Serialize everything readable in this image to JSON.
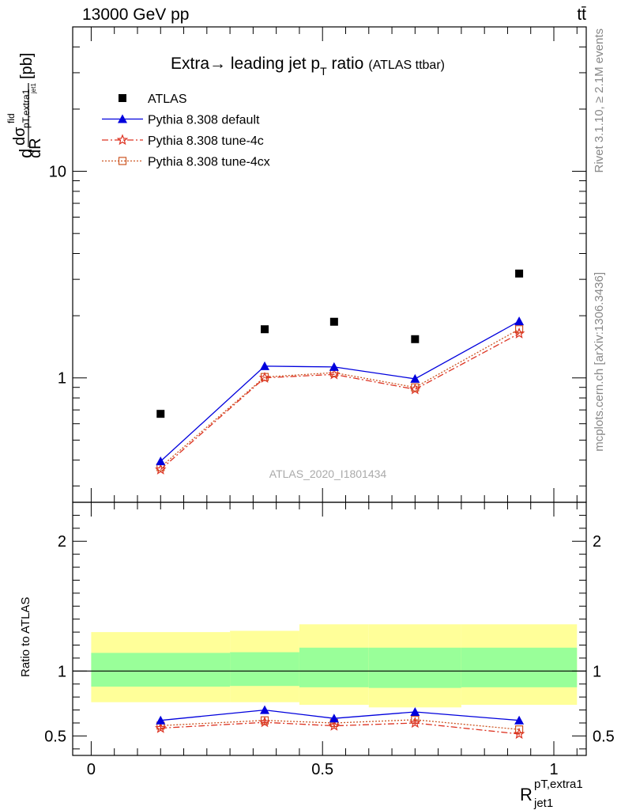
{
  "header": {
    "left": "13000 GeV pp",
    "right": "tt̄"
  },
  "title": {
    "main": "Extra→ leading jet p",
    "sub": "T",
    "rest": " ratio",
    "small": "(ATLAS ttbar)"
  },
  "side_texts": {
    "rivet": "Rivet 3.1.10, ≥ 2.1M events",
    "mcplots": "mcplots.cern.ch [arXiv:1306.3436]"
  },
  "watermark": "ATLAS_2020_I1801434",
  "ylabel_main": {
    "d1": "d",
    "sigma": "dσ",
    "fid": "fid",
    "sub": "pT,extra1",
    "subsub": "jet1",
    "denom": "dR",
    "units": "[pb]"
  },
  "ylabel_ratio": "Ratio to ATLAS",
  "xlabel": {
    "base": "R",
    "sup": "pT,extra1",
    "sub": "jet1"
  },
  "legend": [
    {
      "label": "ATLAS",
      "key": "atlas"
    },
    {
      "label": "Pythia 8.308 default",
      "key": "default"
    },
    {
      "label": "Pythia 8.308 tune-4c",
      "key": "tune4c"
    },
    {
      "label": "Pythia 8.308 tune-4cx",
      "key": "tune4cx"
    }
  ],
  "chart_data": {
    "type": "scatter",
    "x": [
      0.15,
      0.375,
      0.525,
      0.7,
      0.925
    ],
    "xlim": [
      -0.04,
      1.07
    ],
    "main_ylim": [
      0.25,
      50
    ],
    "main_log": true,
    "main_yticks": [
      1,
      10
    ],
    "main_ytick_labels": [
      "1",
      "10"
    ],
    "ratio_ylim": [
      0.35,
      2.3
    ],
    "ratio_yticks": [
      0.5,
      1,
      2
    ],
    "ratio_ytick_labels": [
      "0.5",
      "1",
      "2"
    ],
    "xticks": [
      0,
      0.5,
      1
    ],
    "xtick_labels": [
      "0",
      "0.5",
      "1"
    ],
    "colors": {
      "atlas": "#000000",
      "default": "#0000dd",
      "tune4c": "#dd3322",
      "tune4cx": "#cc5522",
      "band_inner": "#99ff99",
      "band_outer": "#ffff99"
    },
    "series": [
      {
        "name": "ATLAS",
        "key": "atlas",
        "values": [
          0.67,
          1.72,
          1.87,
          1.54,
          3.2
        ]
      },
      {
        "name": "Pythia 8.308 default",
        "key": "default",
        "values": [
          0.395,
          1.14,
          1.13,
          0.99,
          1.88
        ]
      },
      {
        "name": "Pythia 8.308 tune-4c",
        "key": "tune4c",
        "values": [
          0.36,
          1.0,
          1.04,
          0.88,
          1.64
        ]
      },
      {
        "name": "Pythia 8.308 tune-4cx",
        "key": "tune4cx",
        "values": [
          0.37,
          1.01,
          1.06,
          0.9,
          1.72
        ]
      }
    ],
    "ratio_series": [
      {
        "key": "default",
        "values": [
          0.62,
          0.7,
          0.635,
          0.685,
          0.62
        ],
        "errors": [
          0.025,
          0.022,
          0.025,
          0.022,
          0.012
        ]
      },
      {
        "key": "tune4c",
        "values": [
          0.56,
          0.605,
          0.578,
          0.6,
          0.515
        ],
        "errors": [
          0.02,
          0.018,
          0.02,
          0.018,
          0.01
        ]
      },
      {
        "key": "tune4cx",
        "values": [
          0.58,
          0.62,
          0.6,
          0.625,
          0.55
        ],
        "errors": [
          0.02,
          0.018,
          0.02,
          0.018,
          0.01
        ]
      }
    ],
    "ratio_bands": [
      {
        "x": [
          0.0,
          0.3
        ],
        "inner": [
          0.88,
          1.14
        ],
        "outer": [
          0.76,
          1.3
        ]
      },
      {
        "x": [
          0.3,
          0.45
        ],
        "inner": [
          0.885,
          1.145
        ],
        "outer": [
          0.76,
          1.31
        ]
      },
      {
        "x": [
          0.45,
          0.6
        ],
        "inner": [
          0.875,
          1.18
        ],
        "outer": [
          0.74,
          1.36
        ]
      },
      {
        "x": [
          0.6,
          0.8
        ],
        "inner": [
          0.87,
          1.18
        ],
        "outer": [
          0.72,
          1.36
        ]
      },
      {
        "x": [
          0.8,
          1.05
        ],
        "inner": [
          0.875,
          1.18
        ],
        "outer": [
          0.74,
          1.36
        ]
      }
    ]
  }
}
